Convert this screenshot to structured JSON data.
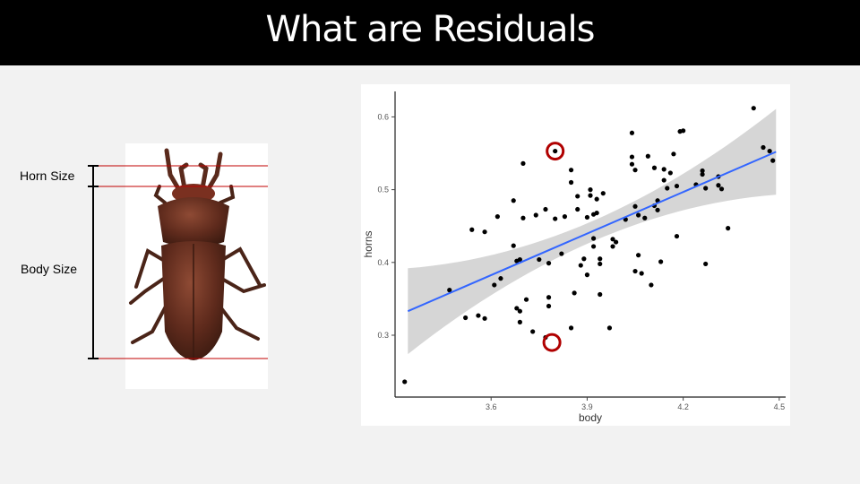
{
  "slide": {
    "title": "What are Residuals"
  },
  "beetle": {
    "horn_label": "Horn Size",
    "body_label": "Body Size"
  },
  "chart_data": {
    "type": "scatter",
    "xlabel": "body",
    "ylabel": "horns",
    "xlim": [
      3.3,
      4.52
    ],
    "ylim": [
      0.215,
      0.635
    ],
    "x_ticks": [
      "3.6",
      "3.9",
      "4.2",
      "4.5"
    ],
    "y_ticks": [
      "0.3",
      "0.4",
      "0.5",
      "0.6"
    ],
    "regression": {
      "x": [
        3.34,
        4.49
      ],
      "y": [
        0.333,
        0.552
      ]
    },
    "highlighted": [
      {
        "x": 3.8,
        "y": 0.553
      },
      {
        "x": 3.79,
        "y": 0.29
      }
    ],
    "colors": {
      "points": "#000000",
      "line": "#3366ff",
      "band": "#c8c8c8",
      "highlight": "#b00000"
    },
    "points": [
      {
        "x": 3.33,
        "y": 0.236
      },
      {
        "x": 3.47,
        "y": 0.362
      },
      {
        "x": 3.52,
        "y": 0.324
      },
      {
        "x": 3.54,
        "y": 0.445
      },
      {
        "x": 3.56,
        "y": 0.327
      },
      {
        "x": 3.58,
        "y": 0.323
      },
      {
        "x": 3.58,
        "y": 0.442
      },
      {
        "x": 3.61,
        "y": 0.369
      },
      {
        "x": 3.62,
        "y": 0.463
      },
      {
        "x": 3.63,
        "y": 0.378
      },
      {
        "x": 3.67,
        "y": 0.423
      },
      {
        "x": 3.67,
        "y": 0.485
      },
      {
        "x": 3.68,
        "y": 0.337
      },
      {
        "x": 3.68,
        "y": 0.402
      },
      {
        "x": 3.69,
        "y": 0.333
      },
      {
        "x": 3.69,
        "y": 0.318
      },
      {
        "x": 3.69,
        "y": 0.404
      },
      {
        "x": 3.7,
        "y": 0.536
      },
      {
        "x": 3.7,
        "y": 0.461
      },
      {
        "x": 3.71,
        "y": 0.349
      },
      {
        "x": 3.73,
        "y": 0.305
      },
      {
        "x": 3.74,
        "y": 0.465
      },
      {
        "x": 3.75,
        "y": 0.404
      },
      {
        "x": 3.77,
        "y": 0.297
      },
      {
        "x": 3.77,
        "y": 0.473
      },
      {
        "x": 3.78,
        "y": 0.399
      },
      {
        "x": 3.78,
        "y": 0.352
      },
      {
        "x": 3.78,
        "y": 0.34
      },
      {
        "x": 3.8,
        "y": 0.553
      },
      {
        "x": 3.8,
        "y": 0.46
      },
      {
        "x": 3.82,
        "y": 0.412
      },
      {
        "x": 3.83,
        "y": 0.463
      },
      {
        "x": 3.85,
        "y": 0.527
      },
      {
        "x": 3.85,
        "y": 0.51
      },
      {
        "x": 3.85,
        "y": 0.31
      },
      {
        "x": 3.86,
        "y": 0.358
      },
      {
        "x": 3.87,
        "y": 0.491
      },
      {
        "x": 3.87,
        "y": 0.473
      },
      {
        "x": 3.88,
        "y": 0.396
      },
      {
        "x": 3.89,
        "y": 0.405
      },
      {
        "x": 3.9,
        "y": 0.383
      },
      {
        "x": 3.9,
        "y": 0.462
      },
      {
        "x": 3.91,
        "y": 0.5
      },
      {
        "x": 3.91,
        "y": 0.492
      },
      {
        "x": 3.92,
        "y": 0.466
      },
      {
        "x": 3.92,
        "y": 0.433
      },
      {
        "x": 3.92,
        "y": 0.422
      },
      {
        "x": 3.93,
        "y": 0.468
      },
      {
        "x": 3.93,
        "y": 0.487
      },
      {
        "x": 3.94,
        "y": 0.405
      },
      {
        "x": 3.94,
        "y": 0.398
      },
      {
        "x": 3.94,
        "y": 0.356
      },
      {
        "x": 3.95,
        "y": 0.495
      },
      {
        "x": 3.97,
        "y": 0.31
      },
      {
        "x": 3.98,
        "y": 0.432
      },
      {
        "x": 3.98,
        "y": 0.422
      },
      {
        "x": 3.99,
        "y": 0.428
      },
      {
        "x": 4.02,
        "y": 0.459
      },
      {
        "x": 4.04,
        "y": 0.578
      },
      {
        "x": 4.04,
        "y": 0.545
      },
      {
        "x": 4.04,
        "y": 0.535
      },
      {
        "x": 4.05,
        "y": 0.477
      },
      {
        "x": 4.05,
        "y": 0.388
      },
      {
        "x": 4.05,
        "y": 0.527
      },
      {
        "x": 4.06,
        "y": 0.465
      },
      {
        "x": 4.06,
        "y": 0.41
      },
      {
        "x": 4.07,
        "y": 0.385
      },
      {
        "x": 4.08,
        "y": 0.461
      },
      {
        "x": 4.09,
        "y": 0.546
      },
      {
        "x": 4.1,
        "y": 0.369
      },
      {
        "x": 4.11,
        "y": 0.478
      },
      {
        "x": 4.11,
        "y": 0.53
      },
      {
        "x": 4.12,
        "y": 0.472
      },
      {
        "x": 4.12,
        "y": 0.485
      },
      {
        "x": 4.13,
        "y": 0.401
      },
      {
        "x": 4.14,
        "y": 0.528
      },
      {
        "x": 4.14,
        "y": 0.513
      },
      {
        "x": 4.15,
        "y": 0.502
      },
      {
        "x": 4.16,
        "y": 0.523
      },
      {
        "x": 4.17,
        "y": 0.549
      },
      {
        "x": 4.18,
        "y": 0.436
      },
      {
        "x": 4.18,
        "y": 0.505
      },
      {
        "x": 4.19,
        "y": 0.58
      },
      {
        "x": 4.2,
        "y": 0.581
      },
      {
        "x": 4.24,
        "y": 0.507
      },
      {
        "x": 4.26,
        "y": 0.526
      },
      {
        "x": 4.26,
        "y": 0.521
      },
      {
        "x": 4.27,
        "y": 0.398
      },
      {
        "x": 4.27,
        "y": 0.502
      },
      {
        "x": 4.31,
        "y": 0.518
      },
      {
        "x": 4.31,
        "y": 0.506
      },
      {
        "x": 4.32,
        "y": 0.501
      },
      {
        "x": 4.34,
        "y": 0.447
      },
      {
        "x": 4.42,
        "y": 0.612
      },
      {
        "x": 4.45,
        "y": 0.558
      },
      {
        "x": 4.47,
        "y": 0.553
      },
      {
        "x": 4.48,
        "y": 0.54
      }
    ]
  }
}
